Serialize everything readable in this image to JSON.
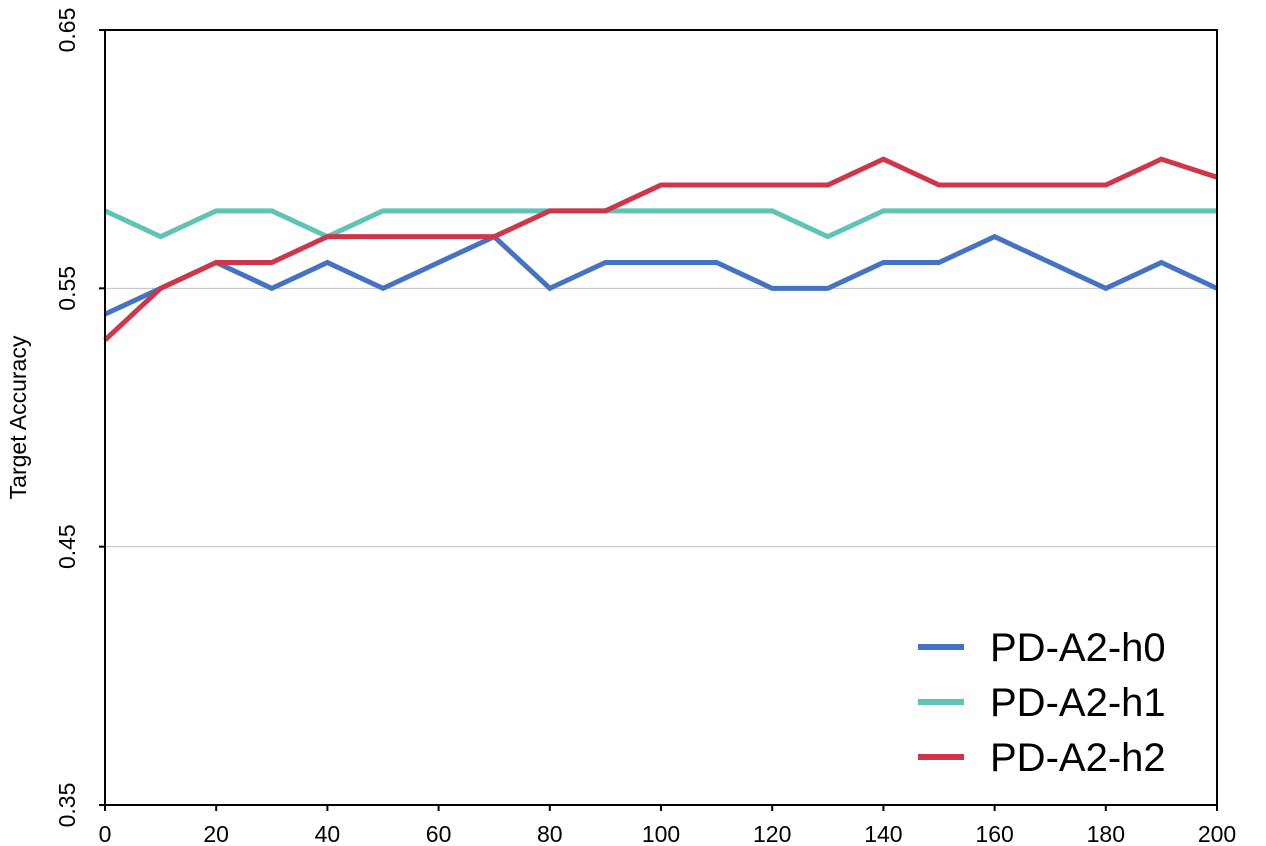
{
  "chart_data": {
    "type": "line",
    "title": "",
    "xlabel": "",
    "ylabel": "Target  Accuracy",
    "xlim": [
      0,
      200
    ],
    "ylim": [
      0.35,
      0.65
    ],
    "x_ticks": [
      "0",
      "20",
      "40",
      "60",
      "80",
      "100",
      "120",
      "140",
      "160",
      "180",
      "200"
    ],
    "y_ticks": [
      "0.35",
      "0.45",
      "0.55",
      "0.65"
    ],
    "x": [
      0,
      10,
      20,
      30,
      40,
      50,
      60,
      70,
      80,
      90,
      100,
      110,
      120,
      130,
      140,
      150,
      160,
      170,
      180,
      190,
      200
    ],
    "grid": "horizontal",
    "legend": "bottom-right",
    "series": [
      {
        "name": "PD-A2-h0",
        "color": "#4472c4",
        "values": [
          0.54,
          0.55,
          0.56,
          0.55,
          0.56,
          0.55,
          0.56,
          0.57,
          0.55,
          0.56,
          0.56,
          0.56,
          0.55,
          0.55,
          0.56,
          0.56,
          0.57,
          0.56,
          0.55,
          0.56,
          0.55
        ]
      },
      {
        "name": "PD-A2-h1",
        "color": "#5ec4b6",
        "values": [
          0.58,
          0.57,
          0.58,
          0.58,
          0.57,
          0.58,
          0.58,
          0.58,
          0.58,
          0.58,
          0.58,
          0.58,
          0.58,
          0.57,
          0.58,
          0.58,
          0.58,
          0.58,
          0.58,
          0.58,
          0.58
        ]
      },
      {
        "name": "PD-A2-h2",
        "color": "#d0364a",
        "values": [
          0.53,
          0.55,
          0.56,
          0.56,
          0.57,
          0.57,
          0.57,
          0.57,
          0.58,
          0.58,
          0.59,
          0.59,
          0.59,
          0.59,
          0.6,
          0.59,
          0.59,
          0.59,
          0.59,
          0.6,
          0.593
        ]
      }
    ]
  }
}
